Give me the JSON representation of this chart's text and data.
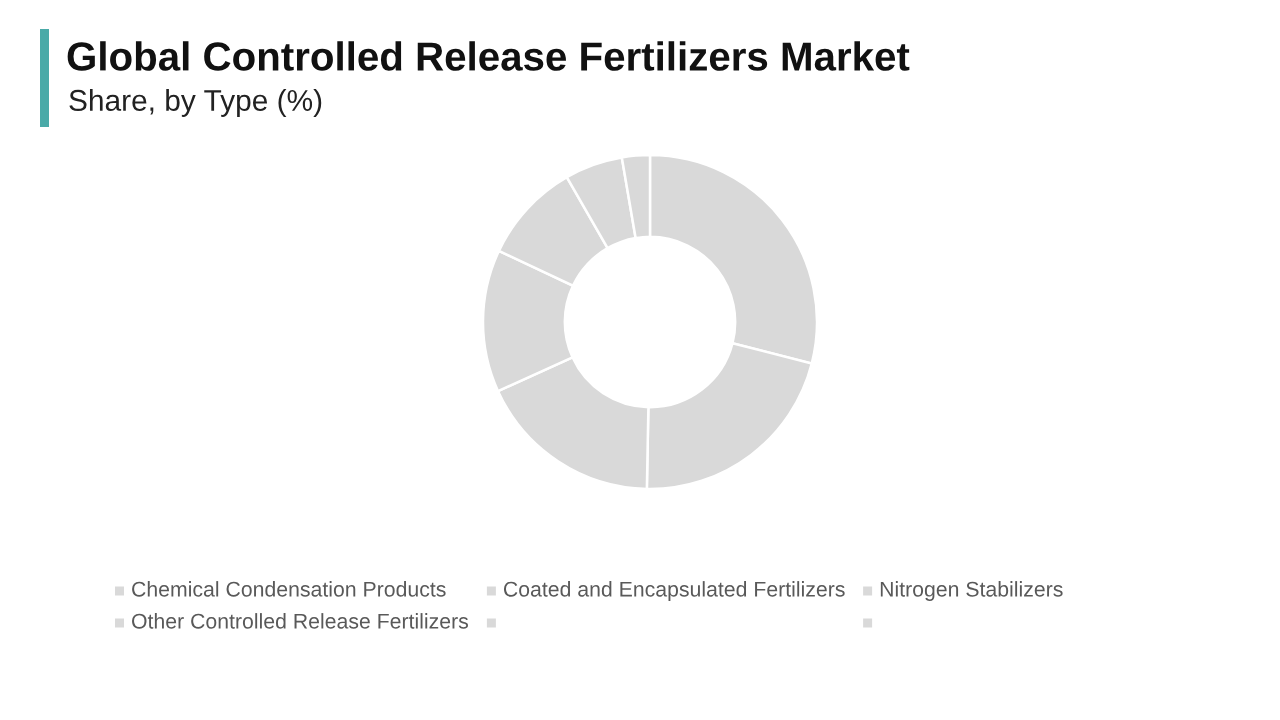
{
  "chart_data": {
    "type": "donut",
    "title": "Global Controlled Release Fertilizers Market",
    "subtitle": "Share, by Type (%)",
    "categories": [
      "Chemical Condensation Products",
      "Coated and Encapsulated Fertilizers",
      "Nitrogen Stabilizers",
      "Other Controlled Release Fertilizers",
      null,
      null,
      null
    ],
    "values": [
      29.0,
      21.3,
      17.9,
      13.8,
      9.7,
      5.6,
      2.7
    ],
    "colors": [
      "#d9d9d9",
      "#d9d9d9",
      "#d9d9d9",
      "#d9d9d9",
      "#d9d9d9",
      "#d9d9d9",
      "#d9d9d9"
    ],
    "legend": "bottom"
  }
}
